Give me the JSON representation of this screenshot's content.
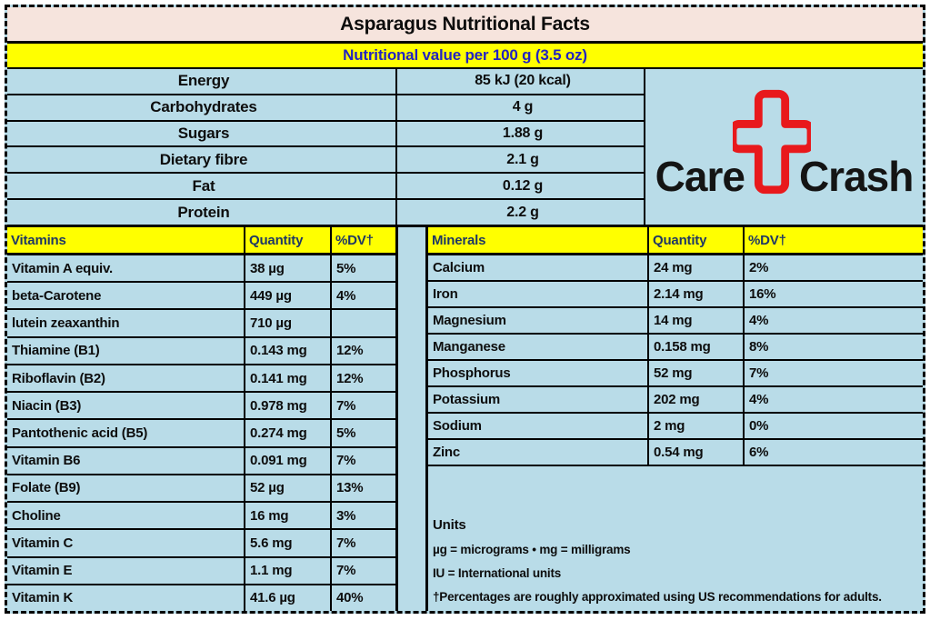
{
  "title": "Asparagus Nutritional Facts",
  "subtitle": "Nutritional value per 100 g (3.5 oz)",
  "summary": {
    "rows": [
      [
        "Energy",
        "85 kJ (20 kcal)"
      ],
      [
        "Carbohydrates",
        "4 g"
      ],
      [
        "Sugars",
        "1.88 g"
      ],
      [
        "Dietary fibre",
        "2.1 g"
      ],
      [
        "Fat",
        "0.12 g"
      ],
      [
        "Protein",
        "2.2 g"
      ]
    ]
  },
  "logo": {
    "word_left": "Care",
    "word_right": "Crash",
    "cross_icon": "medical-plus-outline"
  },
  "vitamins": {
    "headers": [
      "Vitamins",
      "Quantity",
      "%DV†"
    ],
    "rows": [
      [
        "Vitamin A equiv.",
        "38 µg",
        "5%"
      ],
      [
        "beta-Carotene",
        "449 µg",
        "4%"
      ],
      [
        "lutein zeaxanthin",
        "710 µg",
        ""
      ],
      [
        "Thiamine (B1)",
        "0.143 mg",
        "12%"
      ],
      [
        "Riboflavin (B2)",
        "0.141 mg",
        "12%"
      ],
      [
        "Niacin (B3)",
        "0.978 mg",
        "7%"
      ],
      [
        "Pantothenic acid (B5)",
        "0.274 mg",
        "5%"
      ],
      [
        "Vitamin B6",
        "0.091 mg",
        "7%"
      ],
      [
        "Folate (B9)",
        "52 µg",
        "13%"
      ],
      [
        "Choline",
        "16 mg",
        "3%"
      ],
      [
        "Vitamin C",
        "5.6 mg",
        "7%"
      ],
      [
        "Vitamin E",
        "1.1 mg",
        "7%"
      ],
      [
        "Vitamin K",
        "41.6 µg",
        "40%"
      ]
    ]
  },
  "minerals": {
    "headers": [
      "Minerals",
      "Quantity",
      "%DV†"
    ],
    "rows": [
      [
        "Calcium",
        "24 mg",
        "2%"
      ],
      [
        "Iron",
        "2.14 mg",
        "16%"
      ],
      [
        "Magnesium",
        "14 mg",
        "4%"
      ],
      [
        "Manganese",
        "0.158 mg",
        "8%"
      ],
      [
        "Phosphorus",
        "52 mg",
        "7%"
      ],
      [
        "Potassium",
        "202 mg",
        "4%"
      ],
      [
        "Sodium",
        "2 mg",
        "0%"
      ],
      [
        "Zinc",
        "0.54 mg",
        "6%"
      ]
    ]
  },
  "units_note": {
    "heading": "Units",
    "lines": [
      "µg = micrograms • mg = milligrams",
      "IU = International units",
      "†Percentages are roughly approximated using US recommendations for adults."
    ]
  },
  "colors": {
    "light_blue": "#b9dce8",
    "header_yellow": "#ffff00",
    "title_pink": "#f6e4dd",
    "header_text_blue": "#1f3864",
    "subtitle_text_blue": "#2323c1",
    "cross_red": "#e8191c",
    "border_black": "#000000"
  }
}
